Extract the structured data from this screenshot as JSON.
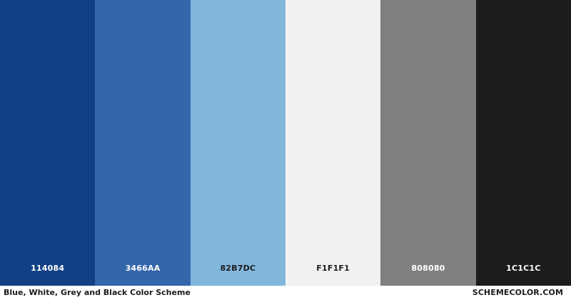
{
  "palette": {
    "swatches": [
      {
        "hex_label": "114084",
        "color": "#114084",
        "text_color": "#ffffff"
      },
      {
        "hex_label": "3466AA",
        "color": "#3466AA",
        "text_color": "#ffffff"
      },
      {
        "hex_label": "82B7DC",
        "color": "#82B7DC",
        "text_color": "#1c1c1c"
      },
      {
        "hex_label": "F1F1F1",
        "color": "#F1F1F1",
        "text_color": "#1c1c1c"
      },
      {
        "hex_label": "808080",
        "color": "#808080",
        "text_color": "#ffffff"
      },
      {
        "hex_label": "1C1C1C",
        "color": "#1C1C1C",
        "text_color": "#ffffff"
      }
    ]
  },
  "footer": {
    "title": "Blue, White, Grey and Black Color Scheme",
    "brand": "SCHEMECOLOR.COM"
  }
}
